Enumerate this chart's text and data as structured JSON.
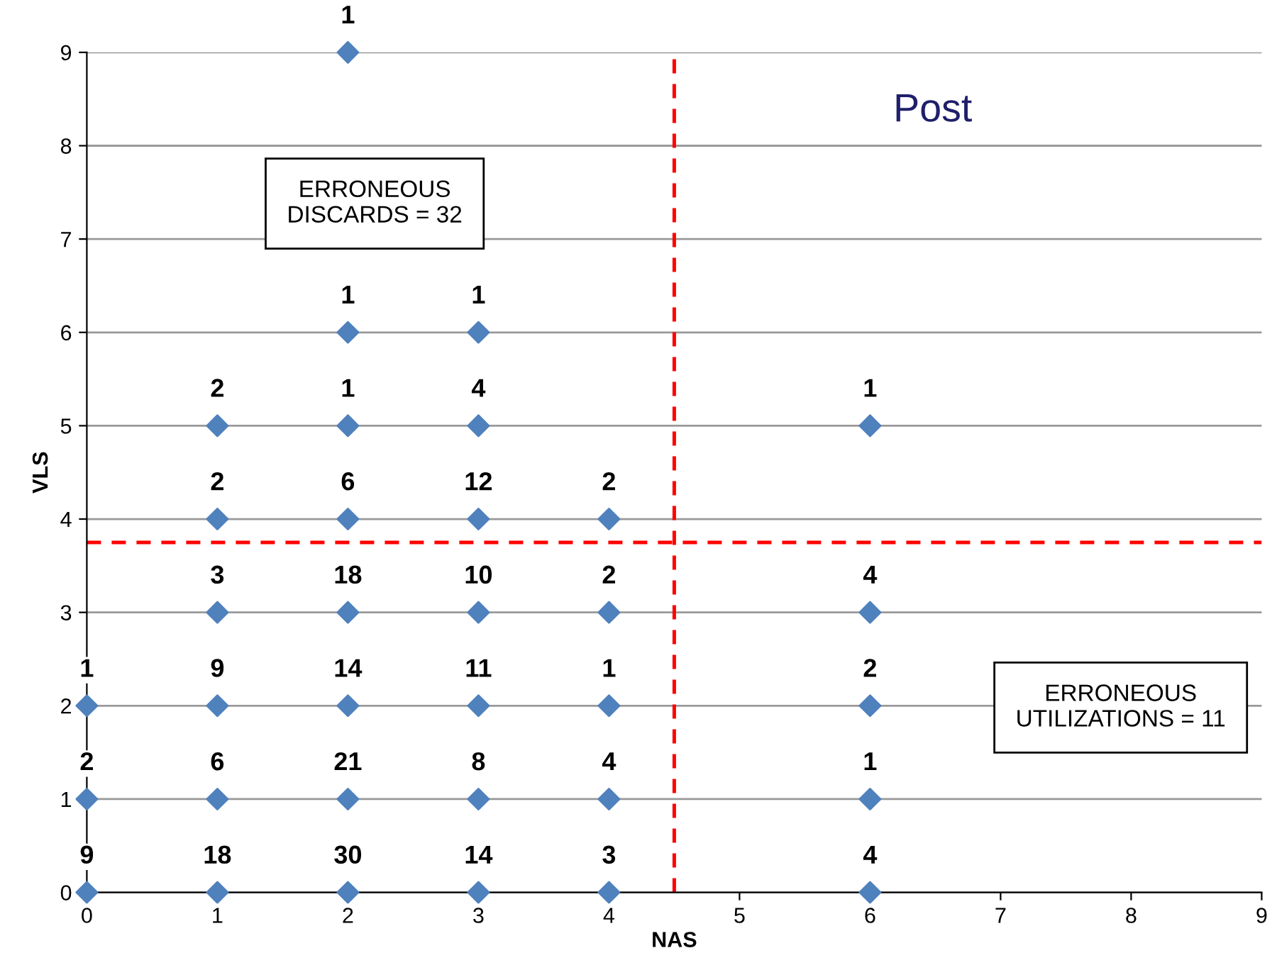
{
  "chart_data": {
    "type": "scatter",
    "xlabel": "NAS",
    "ylabel": "VLS",
    "xlim": [
      0,
      9
    ],
    "ylim": [
      0,
      9
    ],
    "xticks": [
      0,
      1,
      2,
      3,
      4,
      5,
      6,
      7,
      8,
      9
    ],
    "yticks": [
      0,
      1,
      2,
      3,
      4,
      5,
      6,
      7,
      8,
      9
    ],
    "grid": "y",
    "marker": "diamond",
    "series": [
      {
        "color": "#4f81bd",
        "x": [
          0,
          1,
          2,
          3,
          4,
          6,
          0,
          1,
          2,
          3,
          4,
          6,
          0,
          1,
          2,
          3,
          4,
          6,
          1,
          2,
          3,
          4,
          6,
          1,
          2,
          3,
          4,
          1,
          2,
          3,
          6,
          2,
          3,
          2
        ],
        "values": [
          0,
          0,
          0,
          0,
          0,
          0,
          1,
          1,
          1,
          1,
          1,
          1,
          2,
          2,
          2,
          2,
          2,
          2,
          3,
          3,
          3,
          3,
          3,
          4,
          4,
          4,
          4,
          5,
          5,
          5,
          5,
          6,
          6,
          9
        ]
      }
    ],
    "ref_lines": [
      {
        "axis": "x",
        "value": 4.5,
        "color": "#ff0000",
        "line_style": "dashed"
      },
      {
        "axis": "y",
        "value": 3.75,
        "color": "#ff0000",
        "line_style": "dashed"
      }
    ],
    "annotations": [
      "ERRONEOUS\nDISCARDS = 32",
      "Post",
      "ERRONEOUS\nUTILIZATIONS = 11",
      {
        "text": "9",
        "x": 0,
        "y": 0
      },
      {
        "text": "18",
        "x": 1,
        "y": 0
      },
      {
        "text": "30",
        "x": 2,
        "y": 0
      },
      {
        "text": "14",
        "x": 3,
        "y": 0
      },
      {
        "text": "3",
        "x": 4,
        "y": 0
      },
      {
        "text": "4",
        "x": 6,
        "y": 0
      },
      {
        "text": "2",
        "x": 0,
        "y": 1
      },
      {
        "text": "6",
        "x": 1,
        "y": 1
      },
      {
        "text": "21",
        "x": 2,
        "y": 1
      },
      {
        "text": "8",
        "x": 3,
        "y": 1
      },
      {
        "text": "4",
        "x": 4,
        "y": 1
      },
      {
        "text": "1",
        "x": 6,
        "y": 1
      },
      {
        "text": "1",
        "x": 0,
        "y": 2
      },
      {
        "text": "9",
        "x": 1,
        "y": 2
      },
      {
        "text": "14",
        "x": 2,
        "y": 2
      },
      {
        "text": "11",
        "x": 3,
        "y": 2
      },
      {
        "text": "1",
        "x": 4,
        "y": 2
      },
      {
        "text": "2",
        "x": 6,
        "y": 2
      },
      {
        "text": "3",
        "x": 1,
        "y": 3
      },
      {
        "text": "18",
        "x": 2,
        "y": 3
      },
      {
        "text": "10",
        "x": 3,
        "y": 3
      },
      {
        "text": "2",
        "x": 4,
        "y": 3
      },
      {
        "text": "4",
        "x": 6,
        "y": 3
      },
      {
        "text": "2",
        "x": 1,
        "y": 4
      },
      {
        "text": "6",
        "x": 2,
        "y": 4
      },
      {
        "text": "12",
        "x": 3,
        "y": 4
      },
      {
        "text": "2",
        "x": 4,
        "y": 4
      },
      {
        "text": "2",
        "x": 1,
        "y": 5
      },
      {
        "text": "1",
        "x": 2,
        "y": 5
      },
      {
        "text": "4",
        "x": 3,
        "y": 5
      },
      {
        "text": "1",
        "x": 6,
        "y": 5
      },
      {
        "text": "1",
        "x": 2,
        "y": 6
      },
      {
        "text": "1",
        "x": 3,
        "y": 6
      },
      {
        "text": "1",
        "x": 2,
        "y": 9
      }
    ]
  }
}
